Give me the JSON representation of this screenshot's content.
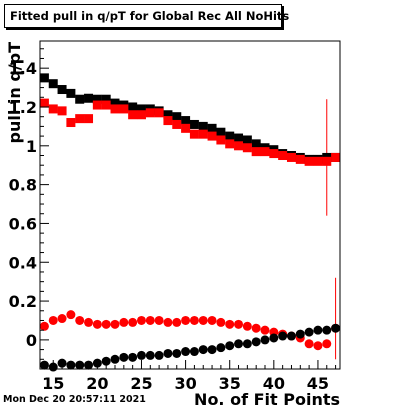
{
  "title": "Fitted pull in q/pT for Global Rec All NoHits",
  "timestamp": "Mon Dec 20 20:57:11 2021",
  "chart_data": {
    "type": "scatter",
    "title": "Fitted pull in q/pT for Global Rec All NoHits",
    "xlabel": "No. of Fit Points",
    "ylabel": "pull in q/pT",
    "xlim": [
      13.5,
      47.5
    ],
    "ylim": [
      -0.15,
      1.54
    ],
    "x_ticks": [
      15,
      20,
      25,
      30,
      35,
      40,
      45
    ],
    "x_tick_labels": [
      "15",
      "20",
      "25",
      "30",
      "35",
      "40",
      "45"
    ],
    "y_ticks": [
      0,
      0.2,
      0.4,
      0.6,
      0.8,
      1,
      1.2,
      1.4
    ],
    "y_tick_labels": [
      "0",
      "0.2",
      "0.4",
      "0.6",
      "0.8",
      "1",
      "1.2",
      "1.4"
    ],
    "grid": false,
    "legend": "none",
    "x": [
      14,
      15,
      16,
      17,
      18,
      19,
      20,
      21,
      22,
      23,
      24,
      25,
      26,
      27,
      28,
      29,
      30,
      31,
      32,
      33,
      34,
      35,
      36,
      37,
      38,
      39,
      40,
      41,
      42,
      43,
      44,
      45,
      46,
      47
    ],
    "series": [
      {
        "marker": "square",
        "color": "#000000",
        "values": [
          1.35,
          1.32,
          1.29,
          1.27,
          1.24,
          1.245,
          1.24,
          1.24,
          1.22,
          1.21,
          1.2,
          1.19,
          1.19,
          1.18,
          1.16,
          1.15,
          1.13,
          1.11,
          1.1,
          1.09,
          1.07,
          1.05,
          1.04,
          1.03,
          1.01,
          0.99,
          0.98,
          0.96,
          0.95,
          0.94,
          0.93,
          0.93,
          0.94,
          0.94
        ]
      },
      {
        "marker": "square",
        "color": "#ff0000",
        "values": [
          1.22,
          1.19,
          1.18,
          1.12,
          1.14,
          1.14,
          1.21,
          1.21,
          1.19,
          1.19,
          1.16,
          1.16,
          1.17,
          1.17,
          1.13,
          1.11,
          1.09,
          1.06,
          1.06,
          1.05,
          1.03,
          1.01,
          1.0,
          0.99,
          0.97,
          0.97,
          0.96,
          0.95,
          0.94,
          0.93,
          0.92,
          0.92,
          0.92,
          0.94
        ],
        "error_bars": [
          {
            "x": 46,
            "low": 0.64,
            "high": 1.24
          }
        ]
      },
      {
        "marker": "circle",
        "color": "#ff0000",
        "values": [
          0.07,
          0.1,
          0.11,
          0.13,
          0.1,
          0.09,
          0.08,
          0.08,
          0.08,
          0.09,
          0.09,
          0.1,
          0.1,
          0.1,
          0.09,
          0.09,
          0.1,
          0.1,
          0.1,
          0.1,
          0.09,
          0.08,
          0.08,
          0.07,
          0.06,
          0.05,
          0.04,
          0.03,
          0.02,
          0.01,
          -0.02,
          -0.03,
          -0.02,
          0.06
        ],
        "error_bars": [
          {
            "x": 47,
            "low": -0.1,
            "high": 0.32
          }
        ]
      },
      {
        "marker": "circle",
        "color": "#000000",
        "values": [
          -0.13,
          -0.14,
          -0.12,
          -0.13,
          -0.13,
          -0.13,
          -0.12,
          -0.11,
          -0.1,
          -0.09,
          -0.09,
          -0.08,
          -0.08,
          -0.08,
          -0.07,
          -0.07,
          -0.06,
          -0.06,
          -0.05,
          -0.05,
          -0.04,
          -0.03,
          -0.02,
          -0.02,
          -0.01,
          0.0,
          0.01,
          0.02,
          0.02,
          0.03,
          0.04,
          0.05,
          0.05,
          0.06
        ]
      }
    ]
  }
}
